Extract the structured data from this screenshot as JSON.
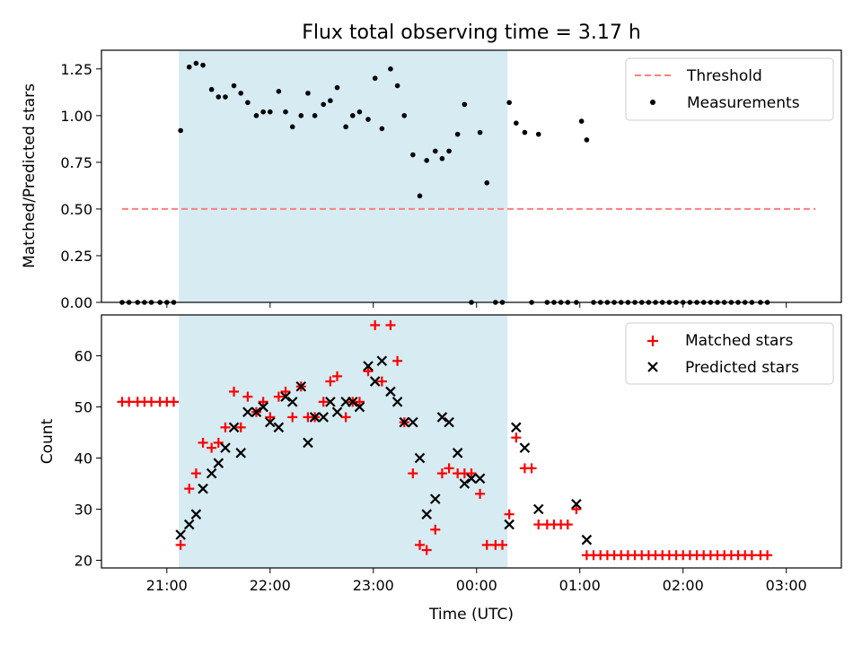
{
  "title": "Flux total observing time = 3.17 h",
  "x_ticks": [
    "21:00",
    "22:00",
    "23:00",
    "00:00",
    "01:00",
    "02:00",
    "03:00"
  ],
  "xlabel": "Time (UTC)",
  "colors": {
    "threshold": "#ff7f7f",
    "measurement": "#000000",
    "matched": "#ff0000",
    "predicted": "#000000",
    "band": "#add8e6"
  },
  "chart_data": [
    {
      "type": "scatter",
      "ylabel": "Matched/Predicted stars",
      "ylim": [
        0,
        1.35
      ],
      "xlim": [
        "20:22",
        "03:32"
      ],
      "y_ticks": [
        "0.00",
        "0.25",
        "0.50",
        "0.75",
        "1.00",
        "1.25"
      ],
      "highlight_span": [
        "21:07",
        "00:18"
      ],
      "legend": {
        "position": "top-right",
        "entries": [
          "Threshold",
          "Measurements"
        ]
      },
      "threshold": {
        "name": "Threshold",
        "value": 0.5,
        "x_range": [
          "20:34",
          "03:17"
        ]
      },
      "series": [
        {
          "name": "Measurements",
          "points": [
            [
              "20:34",
              0
            ],
            [
              "20:38",
              0
            ],
            [
              "20:43",
              0
            ],
            [
              "20:47",
              0
            ],
            [
              "20:51",
              0
            ],
            [
              "20:56",
              0
            ],
            [
              "21:00",
              0
            ],
            [
              "21:04",
              0
            ],
            [
              "21:08",
              0.92
            ],
            [
              "21:13",
              1.26
            ],
            [
              "21:17",
              1.28
            ],
            [
              "21:21",
              1.27
            ],
            [
              "21:26",
              1.14
            ],
            [
              "21:30",
              1.1
            ],
            [
              "21:34",
              1.1
            ],
            [
              "21:39",
              1.16
            ],
            [
              "21:43",
              1.12
            ],
            [
              "21:47",
              1.07
            ],
            [
              "21:52",
              1.0
            ],
            [
              "21:56",
              1.02
            ],
            [
              "22:00",
              1.02
            ],
            [
              "22:05",
              1.13
            ],
            [
              "22:09",
              1.02
            ],
            [
              "22:13",
              0.94
            ],
            [
              "22:18",
              1.0
            ],
            [
              "22:22",
              1.12
            ],
            [
              "22:26",
              1.0
            ],
            [
              "22:31",
              1.06
            ],
            [
              "22:35",
              1.08
            ],
            [
              "22:39",
              1.15
            ],
            [
              "22:44",
              0.94
            ],
            [
              "22:48",
              1.0
            ],
            [
              "22:52",
              1.02
            ],
            [
              "22:57",
              0.98
            ],
            [
              "23:01",
              1.2
            ],
            [
              "23:05",
              0.93
            ],
            [
              "23:10",
              1.25
            ],
            [
              "23:14",
              1.16
            ],
            [
              "23:18",
              1.0
            ],
            [
              "23:23",
              0.79
            ],
            [
              "23:27",
              0.57
            ],
            [
              "23:31",
              0.76
            ],
            [
              "23:36",
              0.81
            ],
            [
              "23:40",
              0.77
            ],
            [
              "23:44",
              0.81
            ],
            [
              "23:49",
              0.9
            ],
            [
              "23:53",
              1.06
            ],
            [
              "23:57",
              0
            ],
            [
              "00:02",
              0.91
            ],
            [
              "00:06",
              0.64
            ],
            [
              "00:11",
              0
            ],
            [
              "00:15",
              0
            ],
            [
              "00:19",
              1.07
            ],
            [
              "00:23",
              0.96
            ],
            [
              "00:28",
              0.91
            ],
            [
              "00:32",
              0
            ],
            [
              "00:36",
              0.9
            ],
            [
              "00:41",
              0
            ],
            [
              "00:45",
              0
            ],
            [
              "00:49",
              0
            ],
            [
              "00:53",
              0
            ],
            [
              "00:58",
              0
            ],
            [
              "01:01",
              0.97
            ],
            [
              "01:04",
              0.87
            ],
            [
              "01:08",
              0
            ],
            [
              "01:12",
              0
            ],
            [
              "01:16",
              0
            ],
            [
              "01:20",
              0
            ],
            [
              "01:24",
              0
            ],
            [
              "01:28",
              0
            ],
            [
              "01:32",
              0
            ],
            [
              "01:36",
              0
            ],
            [
              "01:40",
              0
            ],
            [
              "01:44",
              0
            ],
            [
              "01:48",
              0
            ],
            [
              "01:52",
              0
            ],
            [
              "01:56",
              0
            ],
            [
              "02:00",
              0
            ],
            [
              "02:04",
              0
            ],
            [
              "02:08",
              0
            ],
            [
              "02:12",
              0
            ],
            [
              "02:16",
              0
            ],
            [
              "02:20",
              0
            ],
            [
              "02:24",
              0
            ],
            [
              "02:28",
              0
            ],
            [
              "02:32",
              0
            ],
            [
              "02:36",
              0
            ],
            [
              "02:40",
              0
            ],
            [
              "02:45",
              0
            ],
            [
              "02:49",
              0
            ]
          ]
        }
      ]
    },
    {
      "type": "scatter",
      "ylabel": "Count",
      "ylim": [
        18.5,
        68
      ],
      "xlim": [
        "20:22",
        "03:32"
      ],
      "y_ticks": [
        "20",
        "30",
        "40",
        "50",
        "60"
      ],
      "highlight_span": [
        "21:07",
        "00:18"
      ],
      "legend": {
        "position": "top-right",
        "entries": [
          "Matched stars",
          "Predicted stars"
        ]
      },
      "series": [
        {
          "name": "Matched stars",
          "points": [
            [
              "20:34",
              51
            ],
            [
              "20:38",
              51
            ],
            [
              "20:43",
              51
            ],
            [
              "20:47",
              51
            ],
            [
              "20:51",
              51
            ],
            [
              "20:56",
              51
            ],
            [
              "21:00",
              51
            ],
            [
              "21:04",
              51
            ],
            [
              "21:08",
              23
            ],
            [
              "21:13",
              34
            ],
            [
              "21:17",
              37
            ],
            [
              "21:21",
              43
            ],
            [
              "21:26",
              42
            ],
            [
              "21:30",
              43
            ],
            [
              "21:34",
              46
            ],
            [
              "21:39",
              53
            ],
            [
              "21:43",
              46
            ],
            [
              "21:47",
              52
            ],
            [
              "21:52",
              49
            ],
            [
              "21:56",
              51
            ],
            [
              "22:00",
              48
            ],
            [
              "22:05",
              52
            ],
            [
              "22:09",
              53
            ],
            [
              "22:13",
              48
            ],
            [
              "22:18",
              54
            ],
            [
              "22:22",
              48
            ],
            [
              "22:26",
              48
            ],
            [
              "22:31",
              51
            ],
            [
              "22:35",
              55
            ],
            [
              "22:39",
              56
            ],
            [
              "22:44",
              48
            ],
            [
              "22:48",
              51
            ],
            [
              "22:52",
              51
            ],
            [
              "22:57",
              57
            ],
            [
              "23:01",
              66
            ],
            [
              "23:05",
              55
            ],
            [
              "23:10",
              66
            ],
            [
              "23:14",
              59
            ],
            [
              "23:18",
              47
            ],
            [
              "23:23",
              37
            ],
            [
              "23:27",
              23
            ],
            [
              "23:31",
              22
            ],
            [
              "23:36",
              26
            ],
            [
              "23:40",
              37
            ],
            [
              "23:44",
              38
            ],
            [
              "23:49",
              37
            ],
            [
              "23:53",
              37
            ],
            [
              "23:57",
              37
            ],
            [
              "00:02",
              33
            ],
            [
              "00:06",
              23
            ],
            [
              "00:11",
              23
            ],
            [
              "00:15",
              23
            ],
            [
              "00:19",
              29
            ],
            [
              "00:23",
              44
            ],
            [
              "00:28",
              38
            ],
            [
              "00:32",
              38
            ],
            [
              "00:36",
              27
            ],
            [
              "00:41",
              27
            ],
            [
              "00:45",
              27
            ],
            [
              "00:49",
              27
            ],
            [
              "00:53",
              27
            ],
            [
              "00:58",
              30
            ],
            [
              "01:04",
              21
            ],
            [
              "01:08",
              21
            ],
            [
              "01:12",
              21
            ],
            [
              "01:16",
              21
            ],
            [
              "01:20",
              21
            ],
            [
              "01:24",
              21
            ],
            [
              "01:28",
              21
            ],
            [
              "01:32",
              21
            ],
            [
              "01:36",
              21
            ],
            [
              "01:40",
              21
            ],
            [
              "01:44",
              21
            ],
            [
              "01:48",
              21
            ],
            [
              "01:52",
              21
            ],
            [
              "01:56",
              21
            ],
            [
              "02:00",
              21
            ],
            [
              "02:04",
              21
            ],
            [
              "02:08",
              21
            ],
            [
              "02:12",
              21
            ],
            [
              "02:16",
              21
            ],
            [
              "02:20",
              21
            ],
            [
              "02:24",
              21
            ],
            [
              "02:28",
              21
            ],
            [
              "02:32",
              21
            ],
            [
              "02:36",
              21
            ],
            [
              "02:40",
              21
            ],
            [
              "02:45",
              21
            ],
            [
              "02:49",
              21
            ]
          ]
        },
        {
          "name": "Predicted stars",
          "points": [
            [
              "21:08",
              25
            ],
            [
              "21:13",
              27
            ],
            [
              "21:17",
              29
            ],
            [
              "21:21",
              34
            ],
            [
              "21:26",
              37
            ],
            [
              "21:30",
              39
            ],
            [
              "21:34",
              42
            ],
            [
              "21:39",
              46
            ],
            [
              "21:43",
              41
            ],
            [
              "21:47",
              49
            ],
            [
              "21:52",
              49
            ],
            [
              "21:56",
              50
            ],
            [
              "22:00",
              47
            ],
            [
              "22:05",
              46
            ],
            [
              "22:09",
              52
            ],
            [
              "22:13",
              51
            ],
            [
              "22:18",
              54
            ],
            [
              "22:22",
              43
            ],
            [
              "22:26",
              48
            ],
            [
              "22:31",
              48
            ],
            [
              "22:35",
              51
            ],
            [
              "22:39",
              49
            ],
            [
              "22:44",
              51
            ],
            [
              "22:48",
              51
            ],
            [
              "22:52",
              50
            ],
            [
              "22:57",
              58
            ],
            [
              "23:01",
              55
            ],
            [
              "23:05",
              59
            ],
            [
              "23:10",
              53
            ],
            [
              "23:14",
              51
            ],
            [
              "23:18",
              47
            ],
            [
              "23:23",
              47
            ],
            [
              "23:27",
              40
            ],
            [
              "23:31",
              29
            ],
            [
              "23:36",
              32
            ],
            [
              "23:40",
              48
            ],
            [
              "23:44",
              47
            ],
            [
              "23:49",
              41
            ],
            [
              "23:53",
              35
            ],
            [
              "23:57",
              36
            ],
            [
              "00:02",
              36
            ],
            [
              "00:19",
              27
            ],
            [
              "00:23",
              46
            ],
            [
              "00:28",
              42
            ],
            [
              "00:36",
              30
            ],
            [
              "00:58",
              31
            ],
            [
              "01:04",
              24
            ]
          ]
        }
      ]
    }
  ]
}
